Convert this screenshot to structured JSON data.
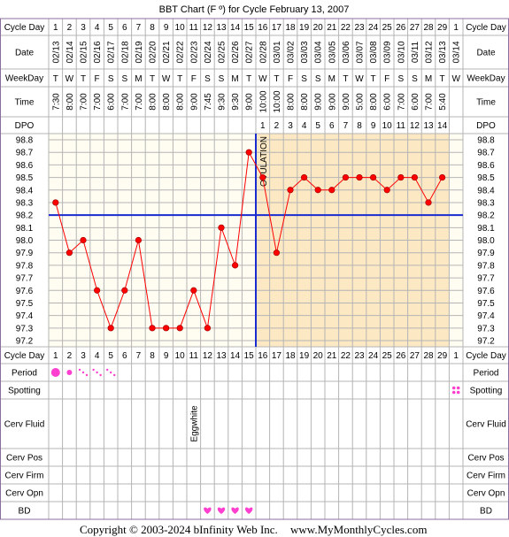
{
  "title": "BBT Chart (F º) for Cycle February 13, 2007",
  "footer": {
    "copyright": "Copyright © 2003-2024 bInfinity Web Inc.",
    "site": "www.MyMonthlyCycles.com"
  },
  "row_labels": {
    "cycle_day": "Cycle Day",
    "date": "Date",
    "weekday": "WeekDay",
    "time": "Time",
    "dpo": "DPO",
    "period": "Period",
    "spotting": "Spotting",
    "cerv_fluid": "Cerv Fluid",
    "cerv_pos": "Cerv Pos",
    "cerv_firm": "Cerv Firm",
    "cerv_opn": "Cerv Opn",
    "bd": "BD"
  },
  "ovulation_label": "OVULATION",
  "colors": {
    "grid": "#b4b4b4",
    "luteal_bg": "#fde8c4",
    "follicular_bg": "#fffdf2",
    "line": "#ff0000",
    "coverline": "#1a2ccf",
    "period": "#ff3fcf",
    "bd_heart": "#ff3fcf",
    "border": "#8a6f9e"
  },
  "chart_data": {
    "type": "line",
    "cycle_days": [
      "1",
      "2",
      "3",
      "4",
      "5",
      "6",
      "7",
      "8",
      "9",
      "10",
      "11",
      "12",
      "13",
      "14",
      "15",
      "16",
      "17",
      "18",
      "19",
      "20",
      "21",
      "22",
      "23",
      "24",
      "25",
      "26",
      "27",
      "28",
      "29",
      "1"
    ],
    "dates": [
      "02/13",
      "02/14",
      "02/15",
      "02/16",
      "02/17",
      "02/18",
      "02/19",
      "02/20",
      "02/21",
      "02/22",
      "02/23",
      "02/24",
      "02/25",
      "02/26",
      "02/27",
      "02/28",
      "03/01",
      "03/02",
      "03/03",
      "03/04",
      "03/05",
      "03/06",
      "03/07",
      "03/08",
      "03/09",
      "03/10",
      "03/11",
      "03/12",
      "03/13",
      "03/14"
    ],
    "weekdays": [
      "T",
      "W",
      "T",
      "F",
      "S",
      "S",
      "M",
      "T",
      "W",
      "T",
      "F",
      "S",
      "S",
      "M",
      "T",
      "W",
      "T",
      "F",
      "S",
      "S",
      "M",
      "T",
      "W",
      "T",
      "F",
      "S",
      "S",
      "M",
      "T",
      "W"
    ],
    "times": [
      "7:30",
      "8:00",
      "7:00",
      "7:00",
      "6:00",
      "7:00",
      "7:00",
      "8:00",
      "8:00",
      "8:00",
      "9:00",
      "7:45",
      "9:30",
      "9:30",
      "9:00",
      "10:00",
      "10:00",
      "8:00",
      "8:00",
      "9:00",
      "9:00",
      "9:00",
      "5:00",
      "8:00",
      "6:00",
      "7:00",
      "6:00",
      "7:00",
      "5:40",
      ""
    ],
    "dpo": [
      "",
      "",
      "",
      "",
      "",
      "",
      "",
      "",
      "",
      "",
      "",
      "",
      "",
      "",
      "",
      "1",
      "2",
      "3",
      "4",
      "5",
      "6",
      "7",
      "8",
      "9",
      "10",
      "11",
      "12",
      "13",
      "14",
      ""
    ],
    "y_ticks": [
      "98.8",
      "98.7",
      "98.6",
      "98.5",
      "98.4",
      "98.3",
      "98.2",
      "98.1",
      "98.0",
      "97.9",
      "97.8",
      "97.7",
      "97.6",
      "97.5",
      "97.4",
      "97.3",
      "97.2"
    ],
    "ylim": [
      97.2,
      98.8
    ],
    "temps": [
      98.3,
      97.9,
      98.0,
      97.6,
      97.3,
      97.6,
      98.0,
      97.3,
      97.3,
      97.3,
      97.6,
      97.3,
      98.1,
      97.8,
      98.7,
      98.5,
      97.9,
      98.4,
      98.5,
      98.4,
      98.4,
      98.5,
      98.5,
      98.5,
      98.4,
      98.5,
      98.5,
      98.3,
      98.5,
      null
    ],
    "coverline": 98.2,
    "ovulation_day": 15,
    "period": [
      3,
      1,
      0.5,
      0.5,
      0.5,
      0,
      0,
      0,
      0,
      0,
      0,
      0,
      0,
      0,
      0,
      0,
      0,
      0,
      0,
      0,
      0,
      0,
      0,
      0,
      0,
      0,
      0,
      0,
      0,
      0
    ],
    "spotting": [
      0,
      0,
      0,
      0,
      0,
      0,
      0,
      0,
      0,
      0,
      0,
      0,
      0,
      0,
      0,
      0,
      0,
      0,
      0,
      0,
      0,
      0,
      0,
      0,
      0,
      0,
      0,
      0,
      0,
      1
    ],
    "cerv_fluid": [
      "",
      "",
      "",
      "",
      "",
      "",
      "",
      "",
      "",
      "",
      "Eggwhite",
      "",
      "",
      "",
      "",
      "",
      "",
      "",
      "",
      "",
      "",
      "",
      "",
      "",
      "",
      "",
      "",
      "",
      "",
      ""
    ],
    "bd": [
      0,
      0,
      0,
      0,
      0,
      0,
      0,
      0,
      0,
      0,
      0,
      1,
      1,
      1,
      1,
      0,
      0,
      0,
      0,
      0,
      0,
      0,
      0,
      0,
      0,
      0,
      0,
      0,
      0,
      0
    ]
  }
}
